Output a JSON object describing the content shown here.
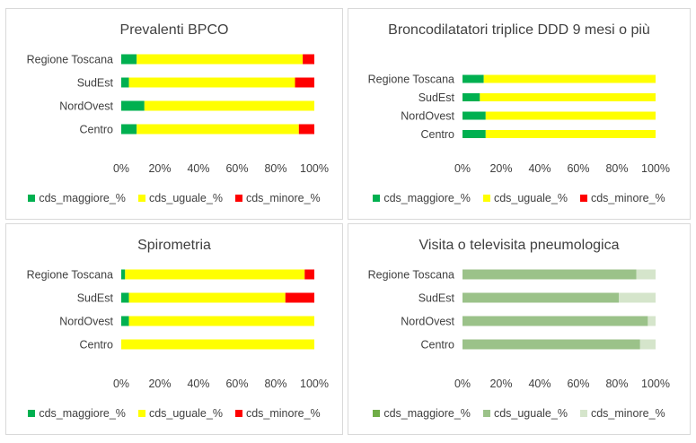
{
  "chart_data": [
    {
      "type": "bar",
      "orientation": "horizontal",
      "stacked": "percent",
      "title": "Prevalenti BPCO",
      "categories": [
        "Regione Toscana",
        "SudEst",
        "NordOvest",
        "Centro"
      ],
      "series": [
        {
          "name": "cds_maggiore_%",
          "color": "#00b050",
          "values": [
            8,
            4,
            12,
            8
          ]
        },
        {
          "name": "cds_uguale_%",
          "color": "#ffff00",
          "values": [
            86,
            86,
            88,
            84
          ]
        },
        {
          "name": "cds_minore_%",
          "color": "#ff0000",
          "values": [
            6,
            10,
            0,
            8
          ]
        }
      ],
      "xlim": [
        0,
        100
      ],
      "xticks": [
        "0%",
        "20%",
        "40%",
        "60%",
        "80%",
        "100%"
      ],
      "legend": "bottom",
      "grid": false
    },
    {
      "type": "bar",
      "orientation": "horizontal",
      "stacked": "percent",
      "title": "Broncodilatatori triplice DDD 9 mesi o più",
      "categories": [
        "Regione Toscana",
        "SudEst",
        "NordOvest",
        "Centro"
      ],
      "series": [
        {
          "name": "cds_maggiore_%",
          "color": "#00b050",
          "values": [
            11,
            9,
            12,
            12
          ]
        },
        {
          "name": "cds_uguale_%",
          "color": "#ffff00",
          "values": [
            89,
            91,
            88,
            88
          ]
        },
        {
          "name": "cds_minore_%",
          "color": "#ff0000",
          "values": [
            0,
            0,
            0,
            0
          ]
        }
      ],
      "xlim": [
        0,
        100
      ],
      "xticks": [
        "0%",
        "20%",
        "40%",
        "60%",
        "80%",
        "100%"
      ],
      "legend": "bottom",
      "grid": false
    },
    {
      "type": "bar",
      "orientation": "horizontal",
      "stacked": "percent",
      "title": "Spirometria",
      "categories": [
        "Regione Toscana",
        "SudEst",
        "NordOvest",
        "Centro"
      ],
      "series": [
        {
          "name": "cds_maggiore_%",
          "color": "#00b050",
          "values": [
            2,
            4,
            4,
            0
          ]
        },
        {
          "name": "cds_uguale_%",
          "color": "#ffff00",
          "values": [
            93,
            81,
            96,
            100
          ]
        },
        {
          "name": "cds_minore_%",
          "color": "#ff0000",
          "values": [
            5,
            15,
            0,
            0
          ]
        }
      ],
      "xlim": [
        0,
        100
      ],
      "xticks": [
        "0%",
        "20%",
        "40%",
        "60%",
        "80%",
        "100%"
      ],
      "legend": "bottom",
      "grid": false
    },
    {
      "type": "bar",
      "orientation": "horizontal",
      "stacked": "percent",
      "title": "Visita o televisita pneumologica",
      "categories": [
        "Regione Toscana",
        "SudEst",
        "NordOvest",
        "Centro"
      ],
      "series": [
        {
          "name": "cds_maggiore_%",
          "color": "#70ad47",
          "values": [
            0,
            0,
            0,
            0
          ]
        },
        {
          "name": "cds_uguale_%",
          "color": "#9bc289",
          "values": [
            90,
            81,
            96,
            92
          ]
        },
        {
          "name": "cds_minore_%",
          "color": "#d5e5cb",
          "values": [
            10,
            19,
            4,
            8
          ]
        }
      ],
      "xlim": [
        0,
        100
      ],
      "xticks": [
        "0%",
        "20%",
        "40%",
        "60%",
        "80%",
        "100%"
      ],
      "legend": "bottom",
      "grid": false
    }
  ]
}
